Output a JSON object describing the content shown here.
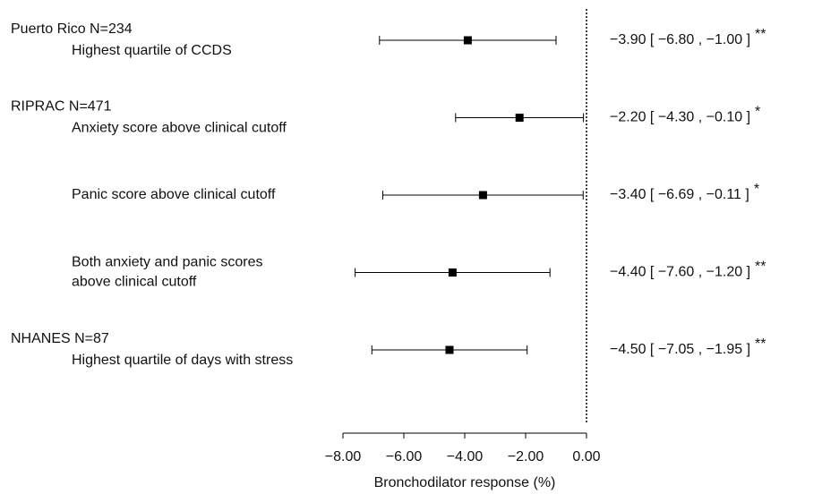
{
  "chart_data": {
    "type": "forest",
    "xlabel": "Bronchodilator response (%)",
    "xlim": [
      -8,
      0
    ],
    "xticks": [
      {
        "value": -8,
        "label": "−8.00"
      },
      {
        "value": -6,
        "label": "−6.00"
      },
      {
        "value": -4,
        "label": "−4.00"
      },
      {
        "value": -2,
        "label": "−2.00"
      },
      {
        "value": 0,
        "label": "0.00"
      }
    ],
    "reference_line": 0,
    "color": "#000000",
    "groups": [
      {
        "name": "Puerto Rico N=234",
        "rows": [
          {
            "label": [
              "Highest quartile of CCDS"
            ],
            "value": -3.9,
            "lower": -6.8,
            "upper": -1.0,
            "interval_label": "−3.90 [ −6.80 , −1.00 ]",
            "significance": "**"
          }
        ]
      },
      {
        "name": "RIPRAC N=471",
        "rows": [
          {
            "label": [
              "Anxiety score above clinical cutoff"
            ],
            "value": -2.2,
            "lower": -4.3,
            "upper": -0.1,
            "interval_label": "−2.20 [ −4.30 , −0.10 ]",
            "significance": "*"
          },
          {
            "label": [
              "Panic score above clinical cutoff"
            ],
            "value": -3.4,
            "lower": -6.69,
            "upper": -0.11,
            "interval_label": "−3.40 [ −6.69 , −0.11 ]",
            "significance": "*"
          },
          {
            "label": [
              "Both anxiety and panic scores",
              "above clinical cutoff"
            ],
            "value": -4.4,
            "lower": -7.6,
            "upper": -1.2,
            "interval_label": "−4.40 [ −7.60 , −1.20 ]",
            "significance": "**"
          }
        ]
      },
      {
        "name": "NHANES N=87",
        "rows": [
          {
            "label": [
              "Highest quartile of days with stress"
            ],
            "value": -4.5,
            "lower": -7.05,
            "upper": -1.95,
            "interval_label": "−4.50 [ −7.05 , −1.95 ]",
            "significance": "**"
          }
        ]
      }
    ]
  }
}
